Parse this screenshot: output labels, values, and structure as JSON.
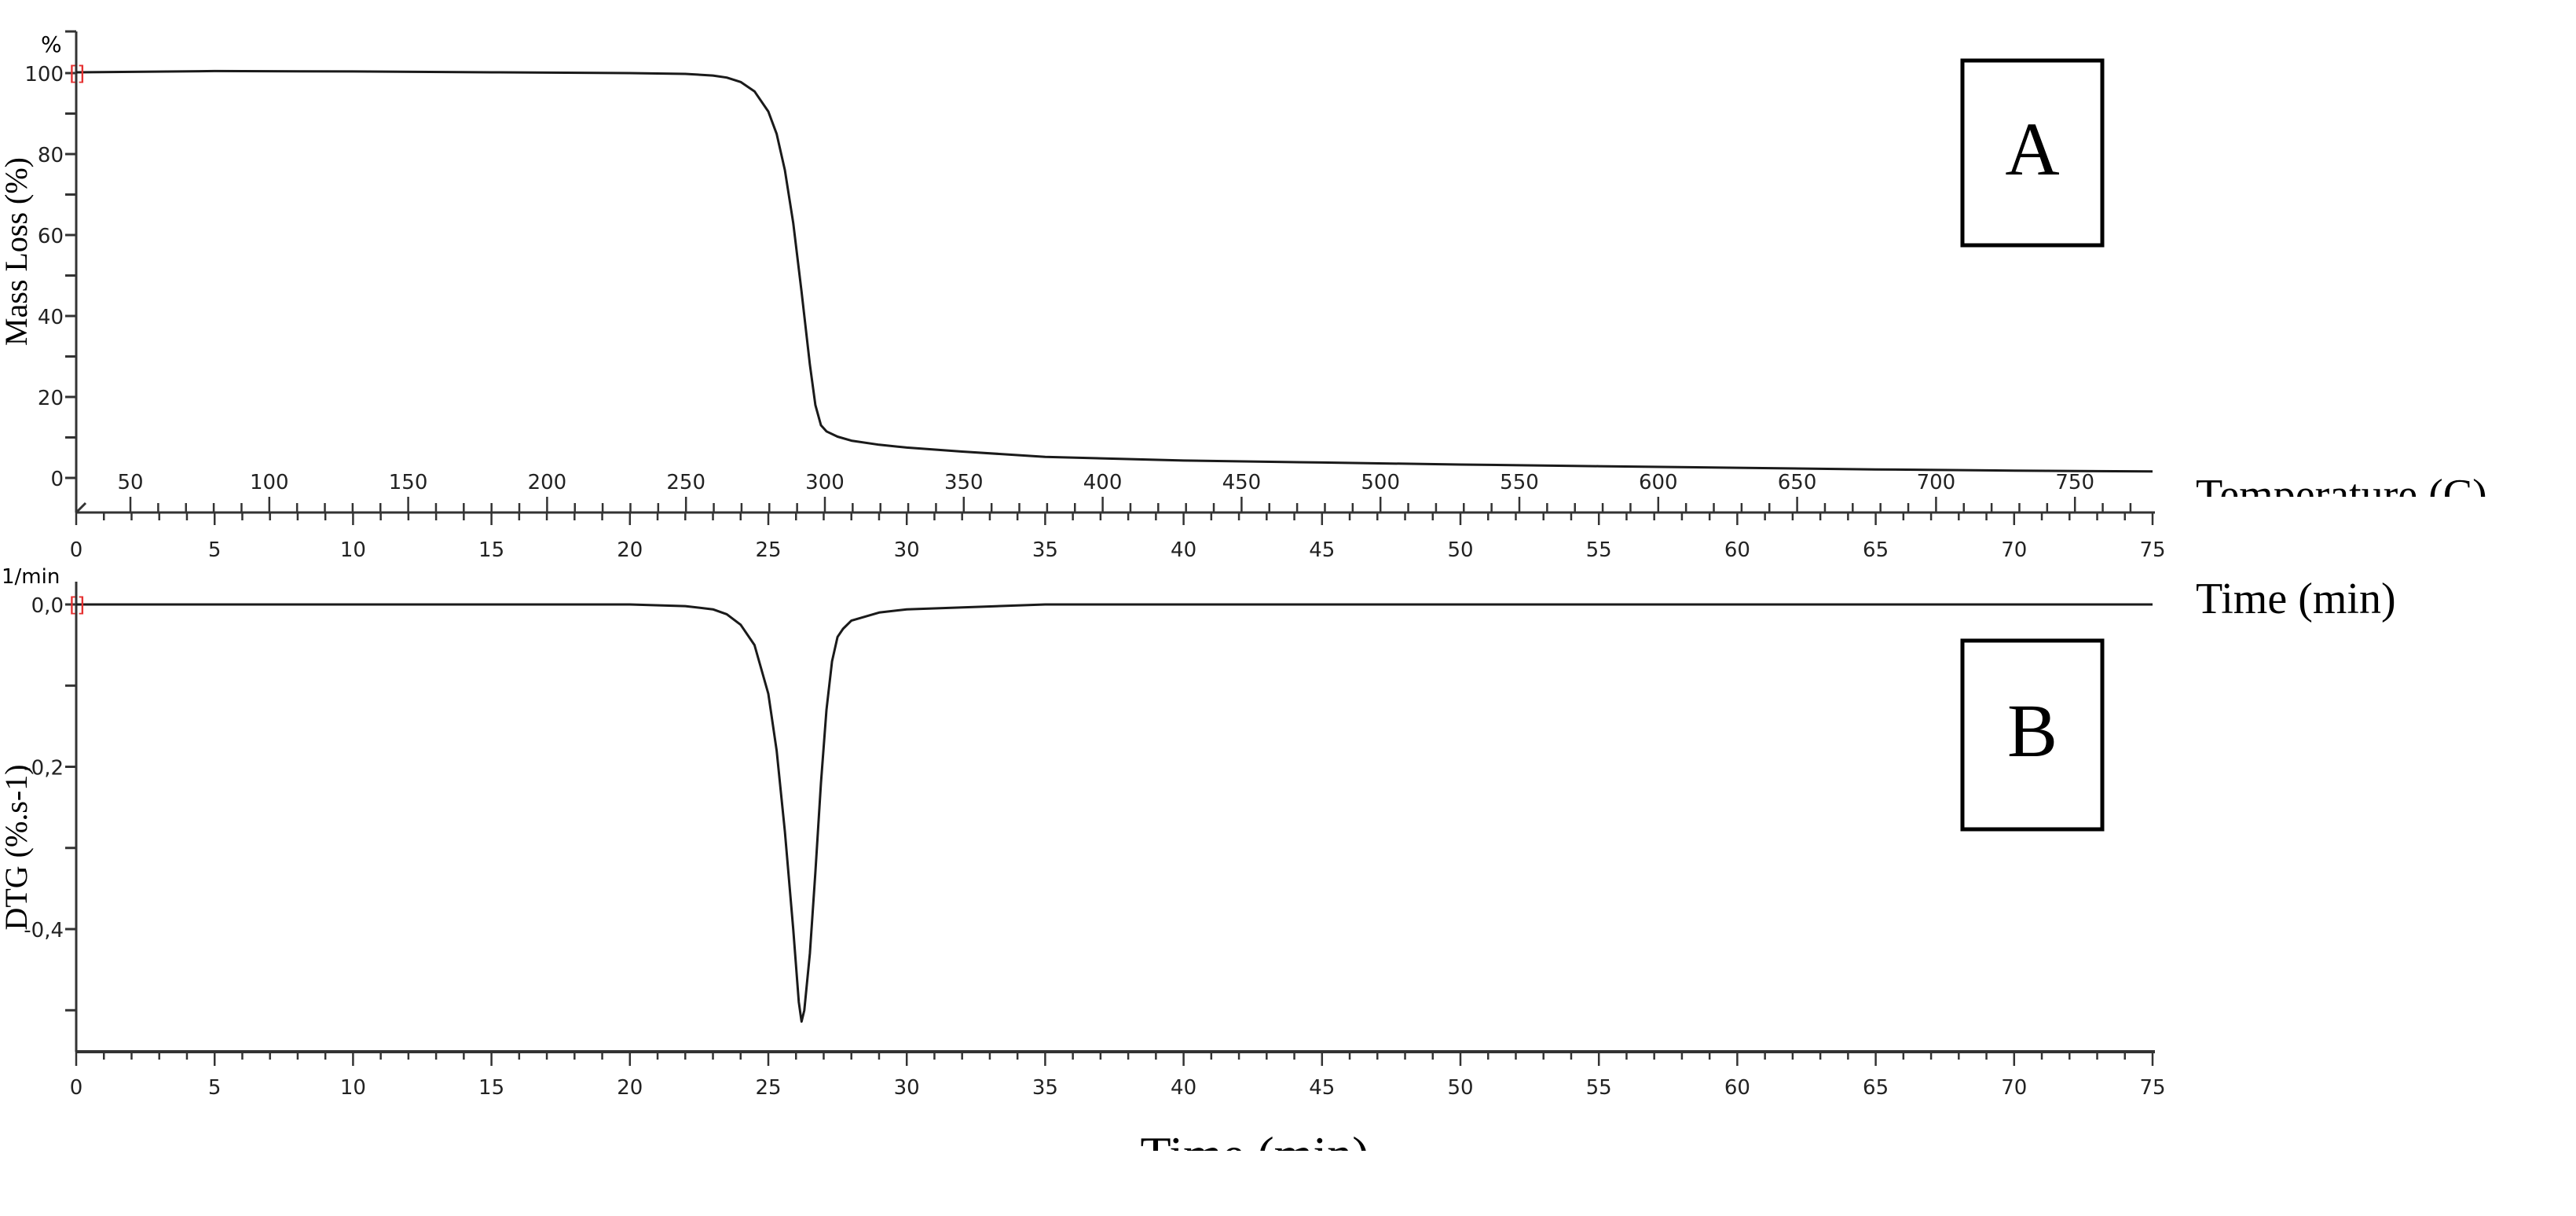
{
  "chart_data": [
    {
      "type": "line",
      "panel_label": "A",
      "ylabel": "Mass Loss (%)",
      "y_unit": "%",
      "xlabel_secondary": "Temperature (C)",
      "xlabel": "Time (min)",
      "xlim": [
        0,
        75
      ],
      "ylim": [
        -8,
        108
      ],
      "y_ticks": [
        "0",
        "20",
        "40",
        "60",
        "80",
        "100"
      ],
      "x_ticks": [
        "0",
        "5",
        "10",
        "15",
        "20",
        "25",
        "30",
        "35",
        "40",
        "45",
        "50",
        "55",
        "60",
        "65",
        "70",
        "75"
      ],
      "temperature_ticks": [
        "50",
        "100",
        "150",
        "200",
        "250",
        "300",
        "350",
        "400",
        "450",
        "500",
        "550",
        "600",
        "650",
        "700",
        "750"
      ],
      "grid": false,
      "line_color": "#1a1a1a",
      "series": [
        {
          "x": [
            0,
            5,
            10,
            15,
            20,
            22,
            23,
            23.5,
            24,
            24.5,
            25,
            25.3,
            25.6,
            25.9,
            26.2,
            26.5,
            26.7,
            26.9,
            27.1,
            27.5,
            28,
            29,
            30,
            32,
            35,
            40,
            45,
            50,
            55,
            60,
            65,
            70,
            75
          ],
          "y": [
            100.2,
            100.5,
            100.4,
            100.2,
            100,
            99.8,
            99.4,
            98.9,
            97.8,
            95.5,
            90.5,
            85,
            76,
            63,
            46,
            28,
            18,
            13,
            11.5,
            10.2,
            9.2,
            8.2,
            7.5,
            6.5,
            5.2,
            4.3,
            3.8,
            3.3,
            2.9,
            2.5,
            2.1,
            1.8,
            1.6
          ]
        }
      ]
    },
    {
      "type": "line",
      "panel_label": "B",
      "ylabel": "DTG (%.s-1)",
      "y_unit": "1/min",
      "xlabel": "Time (min)",
      "xlim": [
        0,
        75
      ],
      "ylim": [
        -0.58,
        0.05
      ],
      "y_ticks": [
        "0,0",
        "-0,2",
        "-0,4"
      ],
      "x_ticks": [
        "0",
        "5",
        "10",
        "15",
        "20",
        "25",
        "30",
        "35",
        "40",
        "45",
        "50",
        "55",
        "60",
        "65",
        "70",
        "75"
      ],
      "grid": false,
      "line_color": "#1a1a1a",
      "series": [
        {
          "x": [
            0,
            5,
            10,
            15,
            20,
            22,
            23,
            23.5,
            24,
            24.5,
            25,
            25.3,
            25.6,
            25.9,
            26.1,
            26.2,
            26.3,
            26.5,
            26.7,
            26.9,
            27.1,
            27.3,
            27.5,
            27.7,
            28,
            29,
            30,
            35,
            40,
            50,
            60,
            75
          ],
          "y": [
            0,
            0,
            0,
            0,
            0,
            -0.002,
            -0.006,
            -0.012,
            -0.025,
            -0.05,
            -0.11,
            -0.18,
            -0.28,
            -0.4,
            -0.49,
            -0.514,
            -0.5,
            -0.43,
            -0.33,
            -0.22,
            -0.13,
            -0.07,
            -0.04,
            -0.03,
            -0.02,
            -0.01,
            -0.006,
            0,
            0,
            0,
            0,
            0
          ]
        }
      ]
    }
  ],
  "labels": {
    "panel_a": "A",
    "panel_b": "B",
    "temperature_axis": "Temperature (C)",
    "time_axis_middle": "Time (min)",
    "time_axis_bottom": "Time (min)",
    "unit_a": "%",
    "unit_b": "1/min",
    "ylabel_a": "Mass Loss (%)",
    "ylabel_b": "DTG (%.s-1)"
  },
  "colors": {
    "line": "#1a1a1a",
    "axis": "#333333",
    "start_marker": "#e53030"
  }
}
